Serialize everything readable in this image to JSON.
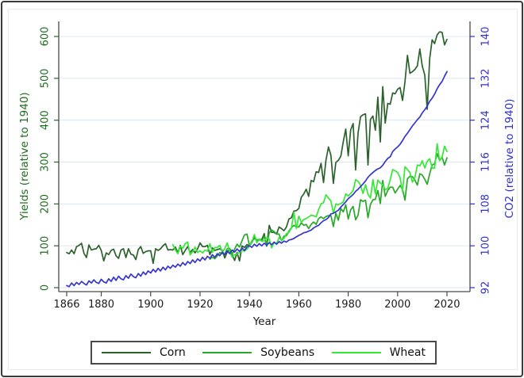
{
  "chart_data": {
    "type": "line",
    "title": "",
    "xlabel": "Year",
    "left_ylabel": "Yields (relative to 1940)",
    "right_ylabel": "CO2 (relative to 1940)",
    "x_ticks": [
      1866,
      1880,
      1900,
      1920,
      1940,
      1960,
      1980,
      2000,
      2020
    ],
    "left_ticks": [
      0,
      100,
      200,
      300,
      400,
      500,
      600
    ],
    "right_ticks": [
      92,
      100,
      108,
      116,
      124,
      132,
      140
    ],
    "xlim": [
      1863,
      2023
    ],
    "left_ylim": [
      -10,
      636
    ],
    "right_ylim": [
      91.2,
      142.9
    ],
    "grid": "horizontal",
    "gridline_color": "#dbe7f0",
    "legend_position": "bottom-center",
    "axis_text_colors": {
      "left": "#1e6b1e",
      "right": "#3030cc",
      "bottom": "#1a1a1a"
    },
    "series": [
      {
        "name": "Corn",
        "axis": "left",
        "color": "#2b622b",
        "start_year": 1866,
        "in_legend": true,
        "values": [
          84,
          81,
          90,
          81,
          98,
          101,
          106,
          82,
          72,
          102,
          90,
          92,
          93,
          101,
          89,
          64,
          83,
          79,
          89,
          92,
          76,
          70,
          90,
          93,
          72,
          93,
          80,
          78,
          67,
          91,
          98,
          82,
          86,
          88,
          88,
          58,
          93,
          89,
          93,
          100,
          105,
          90,
          91,
          90,
          97,
          83,
          101,
          79,
          89,
          98,
          84,
          91,
          83,
          93,
          107,
          98,
          98,
          101,
          79,
          95,
          89,
          91,
          93,
          89,
          71,
          85,
          92,
          79,
          65,
          84,
          64,
          100,
          96,
          103,
          100,
          108,
          122,
          113,
          114,
          115,
          129,
          99,
          149,
          132,
          132,
          128,
          145,
          141,
          136,
          145,
          164,
          167,
          183,
          184,
          189,
          216,
          224,
          235,
          218,
          256,
          253,
          277,
          275,
          297,
          251,
          305,
          336,
          316,
          249,
          299,
          304,
          314,
          349,
          379,
          315,
          377,
          392,
          281,
          369,
          408,
          413,
          415,
          293,
          402,
          410,
          376,
          455,
          348,
          480,
          393,
          440,
          438,
          465,
          463,
          474,
          478,
          447,
          492,
          555,
          512,
          516,
          521,
          530,
          570,
          529,
          508,
          426,
          547,
          592,
          583,
          604,
          611,
          610,
          580,
          593
        ]
      },
      {
        "name": "Soybeans",
        "axis": "left",
        "color": "#28a828",
        "start_year": 1924,
        "in_legend": true,
        "values": [
          68,
          73,
          69,
          76,
          84,
          81,
          80,
          93,
          94,
          80,
          92,
          104,
          97,
          112,
          126,
          128,
          100,
          112,
          117,
          113,
          116,
          111,
          123,
          101,
          131,
          138,
          134,
          128,
          128,
          112,
          123,
          124,
          135,
          143,
          149,
          145,
          145,
          155,
          149,
          151,
          141,
          151,
          157,
          151,
          165,
          169,
          165,
          170,
          172,
          172,
          146,
          178,
          161,
          189,
          181,
          198,
          164,
          186,
          194,
          162,
          173,
          210,
          206,
          209,
          167,
          199,
          210,
          211,
          232,
          201,
          256,
          218,
          232,
          240,
          240,
          226,
          235,
          244,
          235,
          209,
          260,
          266,
          265,
          257,
          245,
          272,
          269,
          259,
          247,
          272,
          293,
          296,
          320,
          304,
          312,
          293,
          310
        ]
      },
      {
        "name": "Wheat",
        "axis": "left",
        "color": "#35e835",
        "start_year": 1909,
        "in_legend": true,
        "values": [
          103,
          90,
          81,
          99,
          94,
          105,
          109,
          78,
          86,
          97,
          84,
          88,
          83,
          90,
          87,
          105,
          84,
          96,
          96,
          101,
          85,
          93,
          107,
          86,
          73,
          79,
          80,
          84,
          89,
          87,
          92,
          100,
          110,
          127,
          107,
          116,
          111,
          112,
          119,
          117,
          95,
          108,
          105,
          120,
          113,
          118,
          129,
          132,
          142,
          180,
          141,
          171,
          156,
          163,
          165,
          169,
          173,
          172,
          169,
          186,
          200,
          203,
          222,
          214,
          207,
          178,
          200,
          198,
          201,
          205,
          224,
          219,
          225,
          232,
          258,
          254,
          245,
          225,
          246,
          223,
          214,
          258,
          224,
          257,
          250,
          246,
          234,
          237,
          258,
          282,
          279,
          275,
          263,
          229,
          289,
          282,
          275,
          252,
          263,
          293,
          291,
          303,
          286,
          302,
          308,
          286,
          285,
          344,
          303,
          311,
          338,
          325
        ]
      },
      {
        "name": "CO2",
        "axis": "right",
        "color": "#3535cd",
        "start_year": 1866,
        "in_legend": false,
        "values": [
          92.4,
          92.2,
          92.9,
          92.4,
          93.0,
          92.6,
          93.2,
          92.8,
          92.5,
          93.3,
          92.9,
          93.5,
          93.0,
          92.8,
          93.6,
          93.1,
          92.9,
          93.7,
          93.2,
          94.0,
          93.4,
          94.2,
          93.7,
          93.5,
          94.3,
          93.8,
          94.6,
          94.1,
          93.9,
          94.7,
          94.2,
          95.0,
          94.5,
          95.2,
          94.8,
          95.5,
          95.0,
          95.7,
          95.2,
          95.9,
          95.4,
          96.1,
          95.7,
          96.3,
          95.9,
          96.5,
          96.1,
          96.8,
          96.3,
          97.0,
          96.6,
          97.3,
          96.8,
          97.5,
          97.1,
          97.8,
          97.3,
          98.0,
          97.6,
          98.3,
          97.8,
          98.5,
          98.1,
          98.8,
          98.3,
          99.0,
          98.5,
          99.2,
          98.8,
          99.4,
          98.9,
          99.6,
          99.1,
          99.8,
          100.0,
          99.7,
          100.3,
          99.9,
          100.4,
          100.0,
          100.5,
          100.1,
          100.6,
          100.2,
          100.7,
          100.3,
          100.8,
          100.5,
          100.9,
          100.7,
          101.1,
          101.2,
          101.4,
          101.7,
          102.0,
          102.2,
          102.5,
          102.6,
          102.8,
          103.0,
          103.4,
          103.7,
          103.9,
          104.4,
          104.8,
          105.0,
          105.4,
          106.1,
          106.2,
          106.5,
          106.8,
          107.4,
          107.9,
          108.4,
          109.0,
          109.4,
          109.8,
          110.4,
          110.8,
          111.3,
          111.8,
          112.4,
          113.1,
          113.6,
          114.0,
          114.4,
          114.7,
          114.9,
          115.4,
          116.1,
          116.7,
          117.0,
          118.0,
          118.5,
          118.9,
          119.4,
          120.1,
          120.9,
          121.5,
          122.2,
          122.9,
          123.5,
          124.1,
          124.6,
          125.4,
          126.0,
          126.7,
          127.6,
          128.2,
          129.0,
          130.0,
          130.8,
          131.4,
          132.4,
          133.3
        ]
      }
    ]
  }
}
